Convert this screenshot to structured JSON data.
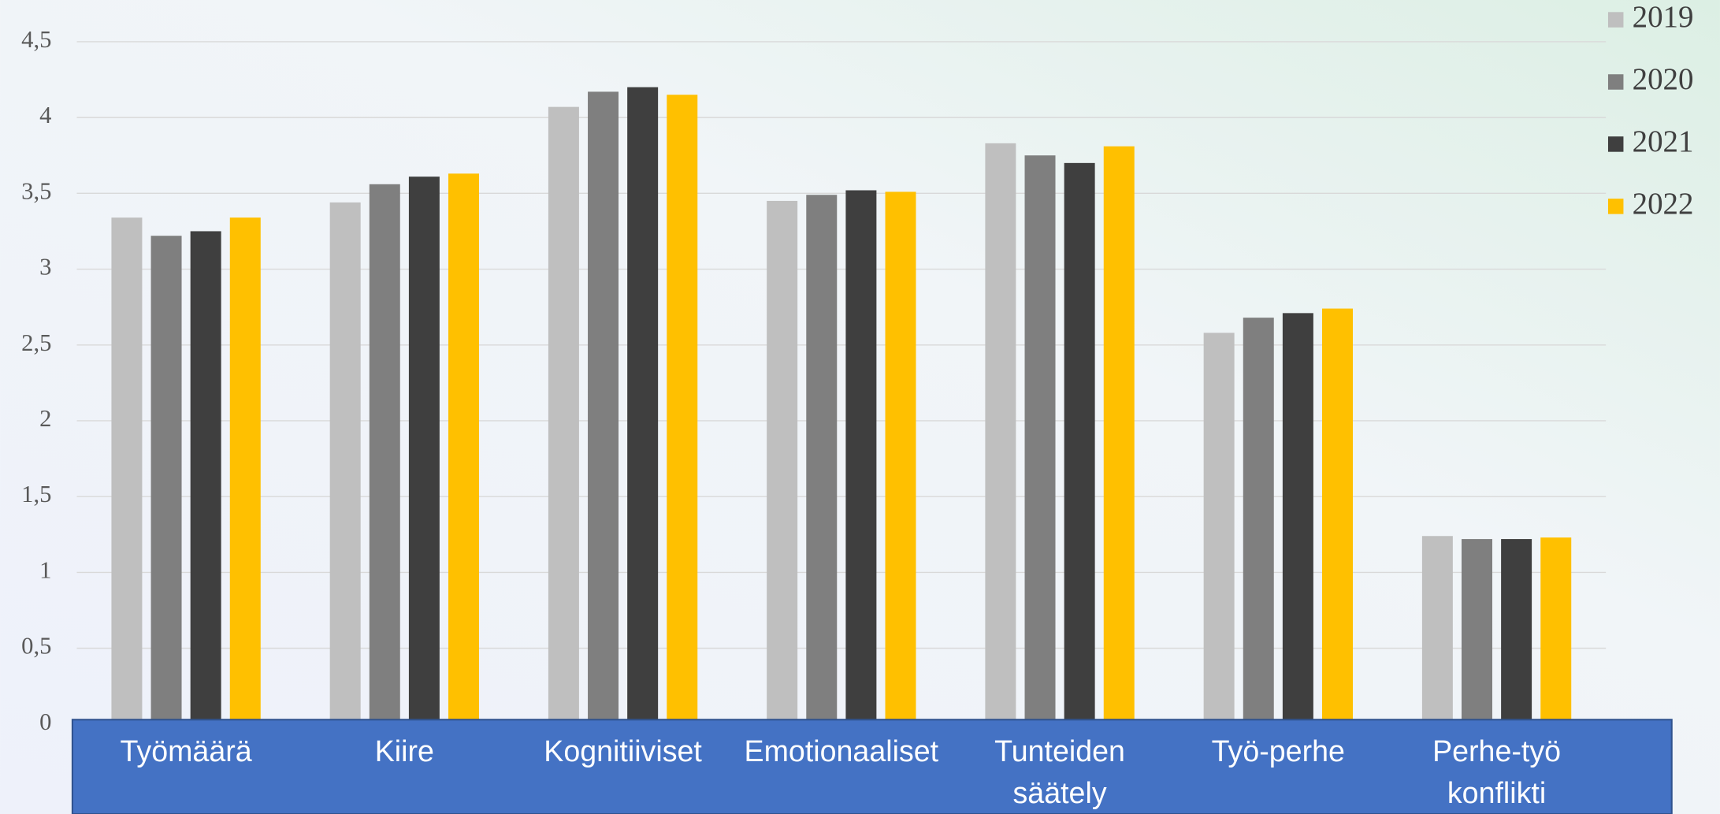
{
  "chart_data": {
    "type": "bar",
    "categories": [
      "Työmäärä",
      "Kiire",
      "Kognitiiviset",
      "Emotionaaliset",
      "Tunteiden säätely",
      "Työ-perhe",
      "Perhe-työ konflikti"
    ],
    "series": [
      {
        "name": "2019",
        "color": "#bfbfbf",
        "values": [
          3.34,
          3.44,
          4.07,
          3.45,
          3.83,
          2.58,
          1.24
        ]
      },
      {
        "name": "2020",
        "color": "#7f7f7f",
        "values": [
          3.22,
          3.56,
          4.17,
          3.49,
          3.75,
          2.68,
          1.22
        ]
      },
      {
        "name": "2021",
        "color": "#3f3f3f",
        "values": [
          3.25,
          3.61,
          4.2,
          3.52,
          3.7,
          2.71,
          1.22
        ]
      },
      {
        "name": "2022",
        "color": "#ffc000",
        "values": [
          3.34,
          3.63,
          4.15,
          3.51,
          3.81,
          2.74,
          1.23
        ]
      }
    ],
    "ylim": [
      0,
      4.5
    ],
    "yticks": [
      0,
      {
        "value": 0.5,
        "label": "0,5"
      },
      1,
      {
        "value": 1.5,
        "label": "1,5"
      },
      2,
      {
        "value": 2.5,
        "label": "2,5"
      },
      3,
      {
        "value": 3.5,
        "label": "3,5"
      },
      4,
      {
        "value": 4.5,
        "label": "4,5"
      }
    ],
    "grid": true,
    "legend": "top-right"
  }
}
